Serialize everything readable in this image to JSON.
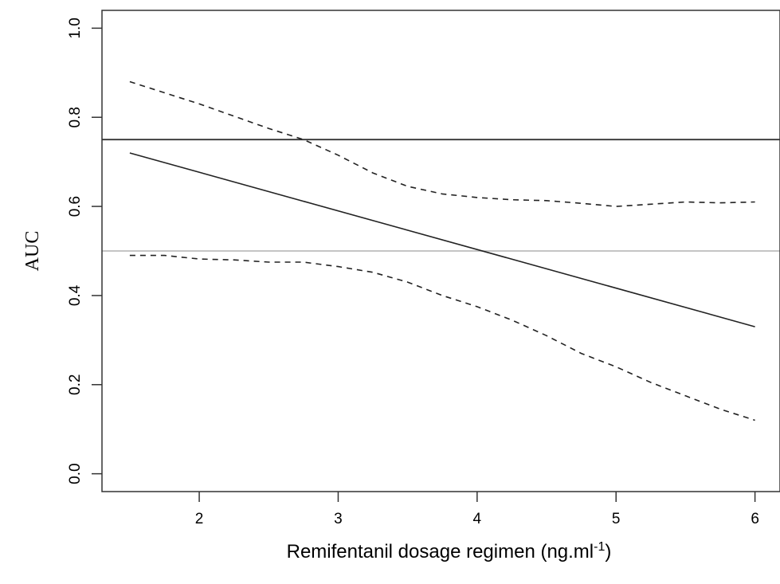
{
  "chart_data": {
    "type": "line",
    "title": "",
    "xlabel": "Remifentanil dosage regimen (ng.ml",
    "xlabel_superscript": "-1",
    "xlabel_suffix": ")",
    "ylabel": "AUC",
    "xlim": [
      1.3,
      6.18
    ],
    "ylim": [
      -0.04,
      1.04
    ],
    "xticks": [
      2,
      3,
      4,
      5,
      6
    ],
    "yticks": [
      0.0,
      0.2,
      0.4,
      0.6,
      0.8,
      1.0
    ],
    "ytick_labels": [
      "0.0",
      "0.2",
      "0.4",
      "0.6",
      "0.8",
      "1.0"
    ],
    "grid": false,
    "reference_lines": [
      {
        "y": 0.75,
        "color": "#333333",
        "style": "solid"
      },
      {
        "y": 0.5,
        "color": "#bbbbbb",
        "style": "solid"
      }
    ],
    "series": [
      {
        "role": "estimate",
        "style": "solid",
        "x": [
          1.5,
          6.0
        ],
        "y": [
          0.72,
          0.33
        ]
      },
      {
        "role": "upper-bound",
        "style": "dashed",
        "x": [
          1.5,
          2.0,
          2.5,
          2.75,
          3.0,
          3.25,
          3.5,
          3.75,
          4.0,
          4.25,
          4.5,
          4.75,
          5.0,
          5.25,
          5.5,
          5.75,
          6.0
        ],
        "y": [
          0.88,
          0.83,
          0.775,
          0.75,
          0.715,
          0.675,
          0.645,
          0.628,
          0.62,
          0.615,
          0.613,
          0.607,
          0.6,
          0.605,
          0.61,
          0.608,
          0.61
        ]
      },
      {
        "role": "lower-bound",
        "style": "dashed",
        "x": [
          1.5,
          1.75,
          2.0,
          2.25,
          2.5,
          2.75,
          3.0,
          3.25,
          3.5,
          3.75,
          4.0,
          4.25,
          4.5,
          4.75,
          5.0,
          5.25,
          5.5,
          5.75,
          6.0
        ],
        "y": [
          0.49,
          0.49,
          0.482,
          0.48,
          0.475,
          0.475,
          0.465,
          0.452,
          0.43,
          0.4,
          0.375,
          0.345,
          0.31,
          0.27,
          0.24,
          0.205,
          0.175,
          0.145,
          0.12
        ]
      }
    ]
  }
}
